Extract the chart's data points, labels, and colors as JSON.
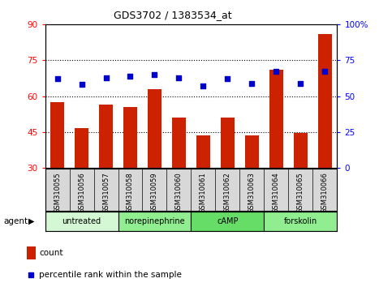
{
  "title": "GDS3702 / 1383534_at",
  "samples": [
    "GSM310055",
    "GSM310056",
    "GSM310057",
    "GSM310058",
    "GSM310059",
    "GSM310060",
    "GSM310061",
    "GSM310062",
    "GSM310063",
    "GSM310064",
    "GSM310065",
    "GSM310066"
  ],
  "counts": [
    57.5,
    46.5,
    56.5,
    55.5,
    63.0,
    51.0,
    43.5,
    51.0,
    43.5,
    71.0,
    44.5,
    86.0
  ],
  "percentiles": [
    62,
    58,
    63,
    64,
    65,
    63,
    57,
    62,
    59,
    67,
    59,
    67
  ],
  "agents": [
    {
      "label": "untreated",
      "start": 0,
      "end": 3,
      "color": "#d4f7d4"
    },
    {
      "label": "norepinephrine",
      "start": 3,
      "end": 6,
      "color": "#90ee90"
    },
    {
      "label": "cAMP",
      "start": 6,
      "end": 9,
      "color": "#66dd66"
    },
    {
      "label": "forskolin",
      "start": 9,
      "end": 12,
      "color": "#90ee90"
    }
  ],
  "bar_color": "#cc2200",
  "dot_color": "#0000cc",
  "left_ylim": [
    30,
    90
  ],
  "right_ylim": [
    0,
    100
  ],
  "left_yticks": [
    30,
    45,
    60,
    75,
    90
  ],
  "right_yticks": [
    0,
    25,
    50,
    75,
    100
  ],
  "right_yticklabels": [
    "0",
    "25",
    "50",
    "75",
    "100%"
  ],
  "hlines": [
    45,
    60,
    75
  ],
  "plot_bg": "#ffffff",
  "legend_count_label": "count",
  "legend_pct_label": "percentile rank within the sample"
}
